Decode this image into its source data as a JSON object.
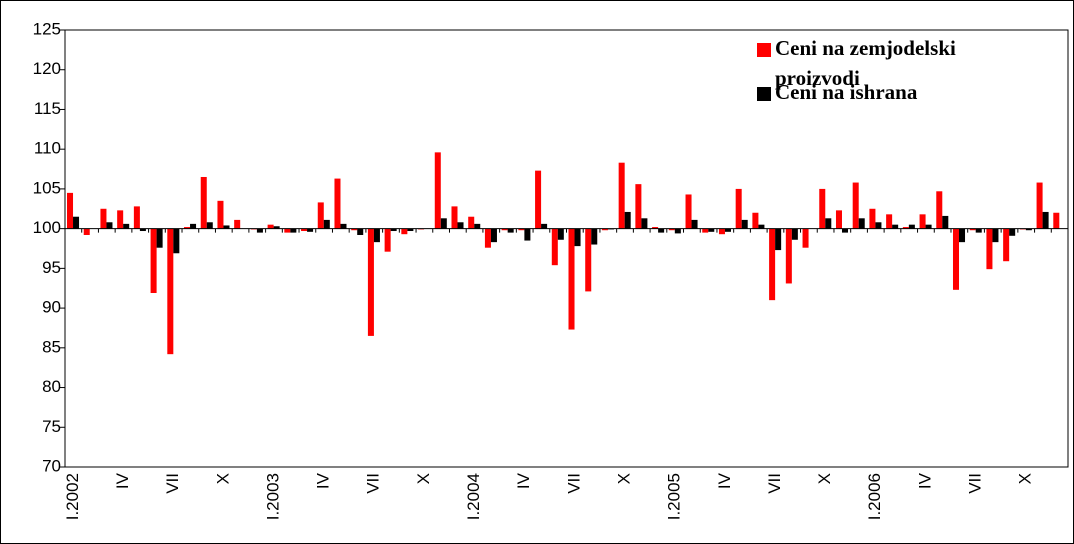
{
  "chart_data": {
    "type": "bar",
    "categories": [
      "I.2002",
      null,
      null,
      "IV",
      null,
      null,
      "VII",
      null,
      null,
      "X",
      null,
      null,
      "I.2003",
      null,
      null,
      "IV",
      null,
      null,
      "VII",
      null,
      null,
      "X",
      null,
      null,
      "I.2004",
      null,
      null,
      "IV",
      null,
      null,
      "VII",
      null,
      null,
      "X",
      null,
      null,
      "I.2005",
      null,
      null,
      "IV",
      null,
      null,
      "VII",
      null,
      null,
      "X",
      null,
      null,
      "I.2006",
      null,
      null,
      "IV",
      null,
      null,
      "VII",
      null,
      null,
      "X",
      null,
      null
    ],
    "series": [
      {
        "name": "Ceni na zemjodelski proizvodi",
        "color": "#ff0000",
        "values": [
          104.5,
          99.2,
          102.5,
          102.3,
          102.8,
          91.9,
          84.2,
          100.2,
          106.5,
          103.5,
          101.1,
          99.9,
          100.5,
          99.5,
          99.7,
          103.3,
          106.3,
          99.8,
          86.5,
          97.1,
          99.3,
          99.9,
          109.6,
          102.8,
          101.5,
          97.6,
          99.8,
          99.8,
          107.3,
          95.4,
          87.3,
          92.1,
          99.8,
          108.3,
          105.6,
          100.2,
          99.8,
          104.3,
          99.5,
          99.3,
          105.0,
          102.0,
          91.0,
          93.1,
          97.6,
          105.0,
          102.3,
          105.8,
          102.5,
          101.8,
          100.2,
          101.8,
          104.7,
          92.3,
          99.8,
          94.9,
          95.9,
          99.9,
          105.8,
          102.0
        ]
      },
      {
        "name": "Ceni na ishrana",
        "color": "#000000",
        "values": [
          101.5,
          100.0,
          100.8,
          100.6,
          99.7,
          97.6,
          96.9,
          100.6,
          100.8,
          100.4,
          100.0,
          99.5,
          100.3,
          99.5,
          99.6,
          101.1,
          100.6,
          99.2,
          98.3,
          99.7,
          99.7,
          100.0,
          101.3,
          100.8,
          100.6,
          98.3,
          99.5,
          98.5,
          100.6,
          98.6,
          97.8,
          98.0,
          99.9,
          102.1,
          101.3,
          99.5,
          99.4,
          101.1,
          99.6,
          99.6,
          101.1,
          100.5,
          97.3,
          98.6,
          100.0,
          101.3,
          99.5,
          101.3,
          100.8,
          100.5,
          100.5,
          100.5,
          101.6,
          98.3,
          99.5,
          98.3,
          99.1,
          99.8,
          102.1,
          100.0
        ]
      }
    ],
    "ylim": [
      70,
      125
    ],
    "yticks": [
      70,
      75,
      80,
      85,
      90,
      95,
      100,
      105,
      110,
      115,
      120,
      125
    ],
    "baseline": 100,
    "grid": false,
    "legend": "top-right"
  }
}
